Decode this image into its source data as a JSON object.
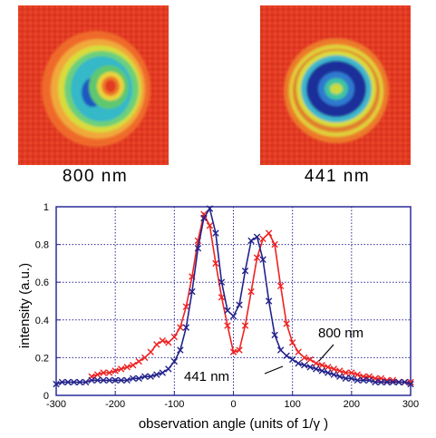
{
  "images": [
    {
      "caption": "800 nm"
    },
    {
      "caption": "441 nm"
    }
  ],
  "colors": {
    "background_red": "#e23b22",
    "red_series": "#ee2222",
    "blue_series": "#23238c",
    "grid": "#2b2b9a"
  },
  "chart_data": {
    "type": "line",
    "xlabel": "observation angle (units of 1/γ )",
    "ylabel": "intensity (a.u.)",
    "xlim": [
      -300,
      300
    ],
    "ylim": [
      0,
      1
    ],
    "xticks": [
      -300,
      -200,
      -100,
      0,
      100,
      200,
      300
    ],
    "yticks": [
      0,
      0.2,
      0.4,
      0.6,
      0.8,
      1
    ],
    "grid": true,
    "marker": "x",
    "annotations": [
      "800 nm",
      "441 nm"
    ],
    "series": [
      {
        "name": "800 nm",
        "color": "#ee2222",
        "x": [
          -240,
          -230,
          -220,
          -210,
          -200,
          -190,
          -180,
          -170,
          -160,
          -150,
          -140,
          -130,
          -120,
          -110,
          -100,
          -90,
          -80,
          -70,
          -60,
          -50,
          -40,
          -30,
          -20,
          -10,
          0,
          10,
          20,
          30,
          40,
          50,
          60,
          70,
          80,
          90,
          100,
          110,
          120,
          130,
          140,
          150,
          160,
          170,
          180,
          190,
          200,
          210,
          220,
          230,
          240,
          250,
          260,
          270,
          280,
          290,
          300
        ],
        "y": [
          0.1,
          0.11,
          0.12,
          0.12,
          0.13,
          0.14,
          0.15,
          0.16,
          0.18,
          0.2,
          0.23,
          0.27,
          0.29,
          0.28,
          0.31,
          0.36,
          0.47,
          0.63,
          0.82,
          0.96,
          0.9,
          0.7,
          0.52,
          0.37,
          0.23,
          0.24,
          0.37,
          0.55,
          0.73,
          0.83,
          0.86,
          0.8,
          0.58,
          0.38,
          0.28,
          0.23,
          0.2,
          0.19,
          0.17,
          0.16,
          0.15,
          0.14,
          0.13,
          0.12,
          0.12,
          0.11,
          0.1,
          0.1,
          0.09,
          0.09,
          0.08,
          0.08,
          0.07,
          0.07,
          0.07
        ]
      },
      {
        "name": "441 nm",
        "color": "#23238c",
        "x": [
          -300,
          -290,
          -280,
          -270,
          -260,
          -250,
          -240,
          -230,
          -220,
          -210,
          -200,
          -190,
          -180,
          -170,
          -160,
          -150,
          -140,
          -130,
          -120,
          -110,
          -100,
          -90,
          -80,
          -70,
          -60,
          -50,
          -40,
          -30,
          -20,
          -10,
          0,
          10,
          20,
          30,
          40,
          50,
          60,
          70,
          80,
          90,
          100,
          110,
          120,
          130,
          140,
          150,
          160,
          170,
          180,
          190,
          200,
          210,
          220,
          230,
          240,
          250,
          260,
          270,
          280,
          290,
          300
        ],
        "y": [
          0.06,
          0.07,
          0.07,
          0.07,
          0.07,
          0.07,
          0.08,
          0.08,
          0.08,
          0.08,
          0.08,
          0.08,
          0.08,
          0.09,
          0.09,
          0.1,
          0.1,
          0.11,
          0.12,
          0.14,
          0.18,
          0.24,
          0.36,
          0.55,
          0.78,
          0.94,
          0.99,
          0.86,
          0.6,
          0.45,
          0.42,
          0.48,
          0.66,
          0.82,
          0.84,
          0.72,
          0.5,
          0.32,
          0.24,
          0.21,
          0.19,
          0.17,
          0.16,
          0.15,
          0.14,
          0.13,
          0.12,
          0.11,
          0.1,
          0.09,
          0.09,
          0.08,
          0.08,
          0.08,
          0.07,
          0.07,
          0.07,
          0.07,
          0.07,
          0.07,
          0.06
        ]
      }
    ]
  }
}
